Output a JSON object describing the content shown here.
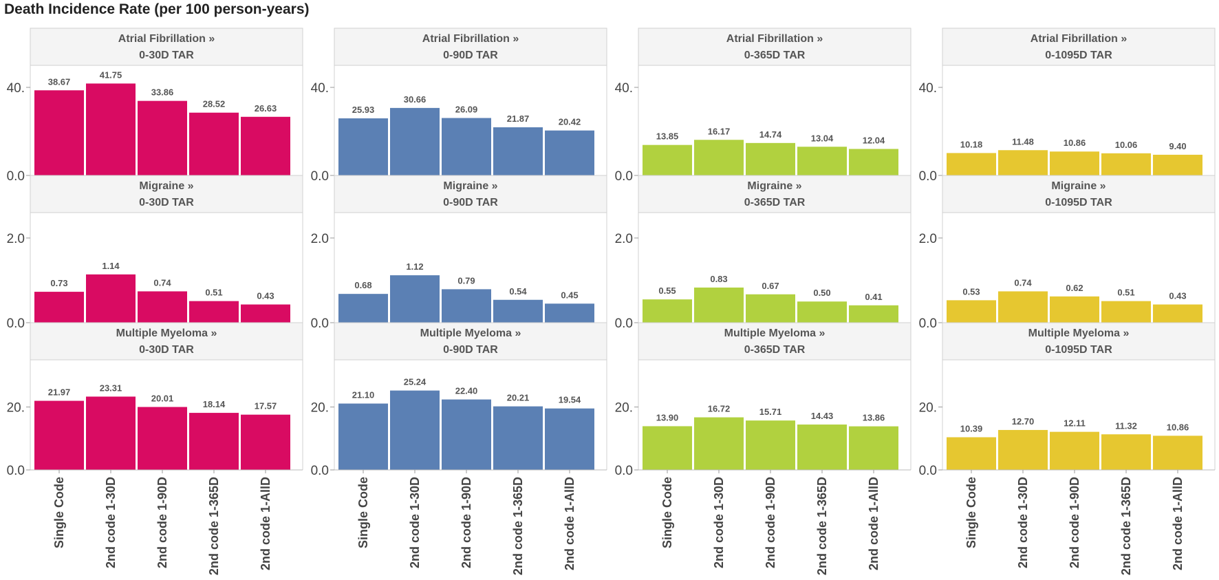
{
  "title": "Death Incidence Rate (per 100 person-years)",
  "colors": [
    "#d90b62",
    "#5b80b4",
    "#b1d13f",
    "#e6c730"
  ],
  "chart_data": {
    "type": "bar",
    "title": "Death Incidence Rate (per 100 person-years)",
    "categories": [
      "Single Code",
      "2nd code 1-30D",
      "2nd code 1-90D",
      "2nd code 1-365D",
      "2nd code 1-AllD"
    ],
    "columns": [
      "0-30D TAR",
      "0-90D TAR",
      "0-365D TAR",
      "0-1095D TAR"
    ],
    "rows": [
      {
        "name": "Atrial Fibrillation »",
        "ticks": [
          "40.",
          "0.0"
        ],
        "tick_values": [
          40,
          0
        ],
        "ylim": [
          0,
          50
        ],
        "values": [
          [
            38.67,
            41.75,
            33.86,
            28.52,
            26.63
          ],
          [
            25.93,
            30.66,
            26.09,
            21.87,
            20.42
          ],
          [
            13.85,
            16.17,
            14.74,
            13.04,
            12.04
          ],
          [
            10.18,
            11.48,
            10.86,
            10.06,
            9.4
          ]
        ],
        "labels": [
          [
            "38.67",
            "41.75",
            "33.86",
            "28.52",
            "26.63"
          ],
          [
            "25.93",
            "30.66",
            "26.09",
            "21.87",
            "20.42"
          ],
          [
            "13.85",
            "16.17",
            "14.74",
            "13.04",
            "12.04"
          ],
          [
            "10.18",
            "11.48",
            "10.86",
            "10.06",
            "9.40"
          ]
        ]
      },
      {
        "name": "Migraine »",
        "ticks": [
          "2.0",
          "0.0"
        ],
        "tick_values": [
          2,
          0
        ],
        "ylim": [
          0,
          2.6
        ],
        "values": [
          [
            0.73,
            1.14,
            0.74,
            0.51,
            0.43
          ],
          [
            0.68,
            1.12,
            0.79,
            0.54,
            0.45
          ],
          [
            0.55,
            0.83,
            0.67,
            0.5,
            0.41
          ],
          [
            0.53,
            0.74,
            0.62,
            0.51,
            0.43
          ]
        ],
        "labels": [
          [
            "0.73",
            "1.14",
            "0.74",
            "0.51",
            "0.43"
          ],
          [
            "0.68",
            "1.12",
            "0.79",
            "0.54",
            "0.45"
          ],
          [
            "0.55",
            "0.83",
            "0.67",
            "0.50",
            "0.41"
          ],
          [
            "0.53",
            "0.74",
            "0.62",
            "0.51",
            "0.43"
          ]
        ]
      },
      {
        "name": "Multiple Myeloma »",
        "ticks": [
          "20.",
          "0.0"
        ],
        "tick_values": [
          20,
          0
        ],
        "ylim": [
          0,
          35
        ],
        "values": [
          [
            21.97,
            23.31,
            20.01,
            18.14,
            17.57
          ],
          [
            21.1,
            25.24,
            22.4,
            20.21,
            19.54
          ],
          [
            13.9,
            16.72,
            15.71,
            14.43,
            13.86
          ],
          [
            10.39,
            12.7,
            12.11,
            11.32,
            10.86
          ]
        ],
        "labels": [
          [
            "21.97",
            "23.31",
            "20.01",
            "18.14",
            "17.57"
          ],
          [
            "21.10",
            "25.24",
            "22.40",
            "20.21",
            "19.54"
          ],
          [
            "13.90",
            "16.72",
            "15.71",
            "14.43",
            "13.86"
          ],
          [
            "10.39",
            "12.70",
            "12.11",
            "11.32",
            "10.86"
          ]
        ]
      }
    ]
  }
}
